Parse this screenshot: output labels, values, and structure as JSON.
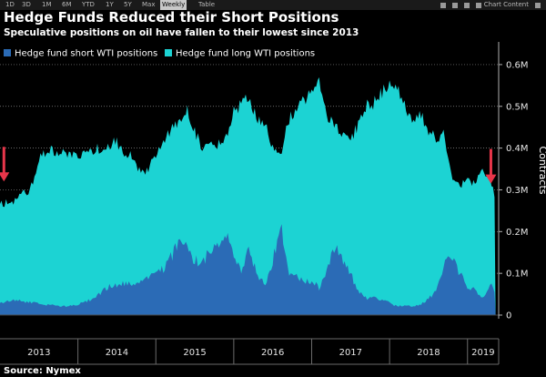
{
  "toolbar": {
    "timeframes": [
      "1D",
      "3D",
      "1M",
      "6M",
      "YTD",
      "1Y",
      "5Y",
      "Max",
      "Weekly",
      "Table"
    ],
    "active": "Weekly",
    "chart_content_label": "Chart Content"
  },
  "colors": {
    "background": "#000000",
    "long": "#1cd3d3",
    "short": "#2b6bb6",
    "arrow": "#e8364a",
    "text": "#ffffff"
  },
  "footer": {
    "source": "Source:  Nymex"
  },
  "chart_data": {
    "type": "area",
    "stacked": false,
    "title": "Hedge Funds Reduced their Short Positions",
    "subtitle": "Speculative positions on oil have fallen to their lowest since 2013",
    "ylabel": "Contracts",
    "xlabel": "",
    "ylim": [
      0,
      650000
    ],
    "yticks": [
      0,
      100000,
      200000,
      300000,
      400000,
      500000,
      600000
    ],
    "ytick_labels": [
      "0",
      "0.1M",
      "0.2M",
      "0.3M",
      "0.4M",
      "0.5M",
      "0.6M"
    ],
    "xlim": [
      2013.0,
      2019.4
    ],
    "year_labels": [
      "2013",
      "2014",
      "2015",
      "2016",
      "2017",
      "2018",
      "2019"
    ],
    "year_starts": [
      2013.0,
      2014.0,
      2015.0,
      2016.0,
      2017.0,
      2018.0,
      2019.0
    ],
    "legend": [
      "Hedge fund short WTI positions",
      "Hedge fund long WTI positions"
    ],
    "legend_position": "top-left",
    "annotations": [
      {
        "type": "arrow",
        "x": 2013.05,
        "y": 320000,
        "text": ""
      },
      {
        "type": "arrow",
        "x": 2019.3,
        "y": 315000,
        "text": ""
      }
    ],
    "series": [
      {
        "name": "Hedge fund long WTI positions",
        "x": [
          2013.0,
          2013.2,
          2013.4,
          2013.5,
          2013.6,
          2013.8,
          2014.0,
          2014.2,
          2014.4,
          2014.5,
          2014.6,
          2014.7,
          2014.8,
          2014.9,
          2015.0,
          2015.15,
          2015.3,
          2015.4,
          2015.5,
          2015.6,
          2015.7,
          2015.8,
          2015.9,
          2016.0,
          2016.1,
          2016.2,
          2016.3,
          2016.4,
          2016.5,
          2016.6,
          2016.7,
          2016.8,
          2016.9,
          2017.0,
          2017.1,
          2017.2,
          2017.3,
          2017.4,
          2017.5,
          2017.6,
          2017.7,
          2017.8,
          2017.9,
          2018.0,
          2018.1,
          2018.2,
          2018.3,
          2018.4,
          2018.5,
          2018.6,
          2018.7,
          2018.8,
          2018.9,
          2019.0,
          2019.1,
          2019.2,
          2019.3,
          2019.36
        ],
        "values": [
          265000,
          275000,
          305000,
          370000,
          395000,
          390000,
          380000,
          395000,
          410000,
          415000,
          385000,
          380000,
          345000,
          345000,
          385000,
          435000,
          460000,
          495000,
          440000,
          400000,
          405000,
          410000,
          430000,
          490000,
          500000,
          520000,
          470000,
          460000,
          400000,
          385000,
          460000,
          500000,
          510000,
          540000,
          555000,
          480000,
          460000,
          425000,
          415000,
          460000,
          500000,
          510000,
          530000,
          555000,
          540000,
          495000,
          470000,
          480000,
          440000,
          425000,
          430000,
          330000,
          310000,
          320000,
          320000,
          350000,
          325000,
          265000
        ]
      },
      {
        "name": "Hedge fund short WTI positions",
        "x": [
          2013.0,
          2013.2,
          2013.4,
          2013.6,
          2013.8,
          2014.0,
          2014.2,
          2014.4,
          2014.6,
          2014.8,
          2015.0,
          2015.15,
          2015.3,
          2015.4,
          2015.5,
          2015.6,
          2015.7,
          2015.8,
          2015.9,
          2016.0,
          2016.1,
          2016.2,
          2016.3,
          2016.4,
          2016.5,
          2016.6,
          2016.7,
          2016.8,
          2016.9,
          2017.0,
          2017.1,
          2017.2,
          2017.3,
          2017.4,
          2017.5,
          2017.6,
          2017.7,
          2017.8,
          2017.9,
          2018.0,
          2018.1,
          2018.2,
          2018.3,
          2018.4,
          2018.5,
          2018.6,
          2018.7,
          2018.8,
          2018.9,
          2019.0,
          2019.1,
          2019.2,
          2019.3,
          2019.36
        ],
        "values": [
          30000,
          35000,
          30000,
          25000,
          20000,
          25000,
          40000,
          70000,
          75000,
          80000,
          95000,
          120000,
          180000,
          160000,
          130000,
          130000,
          150000,
          170000,
          195000,
          150000,
          110000,
          160000,
          95000,
          70000,
          130000,
          215000,
          100000,
          90000,
          80000,
          80000,
          65000,
          110000,
          170000,
          135000,
          100000,
          55000,
          40000,
          45000,
          35000,
          30000,
          20000,
          25000,
          20000,
          25000,
          40000,
          55000,
          120000,
          135000,
          100000,
          70000,
          60000,
          40000,
          70000,
          55000
        ]
      }
    ]
  }
}
